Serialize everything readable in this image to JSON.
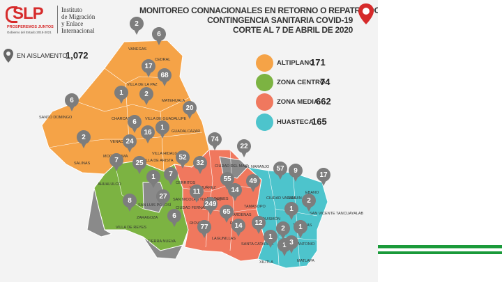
{
  "logo": {
    "brand": "SLP",
    "tagline": "PROSPEREMOS JUNTOS",
    "subtagline": "Gobierno del Estado 2015-2021",
    "institute_lines": [
      "Instituto",
      "de Migración",
      "y Enlace",
      "Internacional"
    ]
  },
  "title_lines": [
    "MONITOREO CONNACIONALES EN RETORNO O REPATRIADOS",
    "CONTINGENCIA SANITARIA COVID-19",
    "CORTE AL 7 DE ABRIL DE 2020"
  ],
  "isolation": {
    "label": "EN AISLAMENTO",
    "value": "1,072"
  },
  "legend": [
    {
      "name": "ALTIPLANO",
      "value": "171",
      "color": "#f5a347"
    },
    {
      "name": "ZONA CENTRO",
      "value": "74",
      "color": "#7cb342"
    },
    {
      "name": "ZONA MEDIA",
      "value": "662",
      "color": "#f0785e"
    },
    {
      "name": "HUASTECA",
      "value": "165",
      "color": "#4dc4cc"
    }
  ],
  "colors": {
    "altiplano": "#f5a347",
    "centro": "#7cb342",
    "media": "#f0785e",
    "huasteca": "#4dc4cc",
    "gray": "#8a8a8a",
    "pin": "#7d7d7d",
    "accent": "#d62b2b"
  },
  "municipalities": [
    {
      "name": "VANEGAS",
      "count": "2"
    },
    {
      "name": "CEDRAL",
      "count": "6"
    },
    {
      "name": "VILLA DE LA PAZ",
      "count": "17"
    },
    {
      "name": "MATEHUALA",
      "count": "68"
    },
    {
      "name": "CHARCAS",
      "count": "1"
    },
    {
      "name": "VILLA DE GUADALUPE",
      "count": "2"
    },
    {
      "name": "SANTO DOMINGO",
      "count": "6"
    },
    {
      "name": "GUADALCAZAR",
      "count": "20"
    },
    {
      "name": "VENADO",
      "count": "6"
    },
    {
      "name": "VILLA HIDALGO",
      "count": "1"
    },
    {
      "name": "SALINAS",
      "count": "2"
    },
    {
      "name": "MOCTEZUMA",
      "count": "24"
    },
    {
      "name": "VILLA DE ARISTA",
      "count": "16"
    },
    {
      "name": "CIUDAD DEL MAIZ",
      "count": "74"
    },
    {
      "name": "EL NARANJO",
      "count": "22"
    },
    {
      "name": "AHUALULCO",
      "count": "7"
    },
    {
      "name": "",
      "count": "25"
    },
    {
      "name": "CERRITOS",
      "count": "52"
    },
    {
      "name": "VILLA JUÁREZ",
      "count": "32"
    },
    {
      "name": "CIUDAD VALLES",
      "count": "57"
    },
    {
      "name": "TAMUIN",
      "count": "9"
    },
    {
      "name": "EBANO",
      "count": "17"
    },
    {
      "name": "",
      "count": "1"
    },
    {
      "name": "SAN NICOLÁS TOLENTINO",
      "count": "7"
    },
    {
      "name": "ALAQUINES",
      "count": "55"
    },
    {
      "name": "TAMASOPO",
      "count": "49"
    },
    {
      "name": "SAN LUIS POTOSÍ",
      "count": "27"
    },
    {
      "name": "CIUDAD FERNÁNDEZ",
      "count": "11"
    },
    {
      "name": "CÁRDENAS",
      "count": "14"
    },
    {
      "name": "SAN VICENTE TANCUAYALAB",
      "count": "2"
    },
    {
      "name": "ZARAGOZA",
      "count": "8"
    },
    {
      "name": "RIOVERDE",
      "count": "249"
    },
    {
      "name": "RAYÓN",
      "count": "65"
    },
    {
      "name": "AQUISMÓN",
      "count": "1"
    },
    {
      "name": "TANLAJÁS",
      "count": "1"
    },
    {
      "name": "VILLA DE REYES",
      "count": ""
    },
    {
      "name": "TIERRA NUEVA",
      "count": "6"
    },
    {
      "name": "LAGUNILLAS",
      "count": "77"
    },
    {
      "name": "SANTA CATARINA",
      "count": "14"
    },
    {
      "name": "",
      "count": "12"
    },
    {
      "name": "XILITLA",
      "count": "1"
    },
    {
      "name": "",
      "count": "2"
    },
    {
      "name": "SAN ANTONIO",
      "count": "1"
    },
    {
      "name": "MATLAPA",
      "count": "3"
    }
  ]
}
